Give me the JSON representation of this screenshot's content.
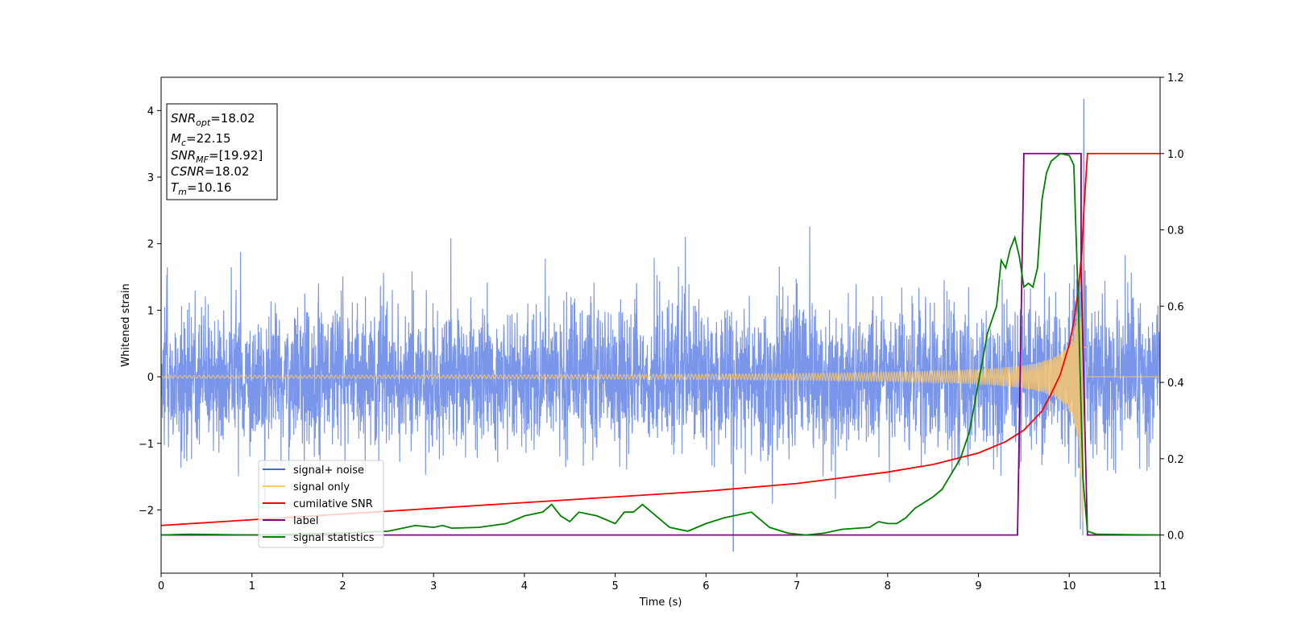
{
  "chart_data": {
    "type": "line",
    "title": "",
    "xlabel": "Time (s)",
    "ylabel": "Whitened strain",
    "xlim": [
      0,
      11
    ],
    "ylim": [
      -2.95,
      4.5
    ],
    "y2lim": [
      -0.1,
      1.2
    ],
    "xticks": [
      "0",
      "1",
      "2",
      "3",
      "4",
      "5",
      "6",
      "7",
      "8",
      "9",
      "10",
      "11"
    ],
    "yticks": [
      -2,
      -1,
      0,
      1,
      2,
      3,
      4
    ],
    "yticks_labels": [
      "−2",
      "−1",
      "0",
      "1",
      "2",
      "3",
      "4"
    ],
    "y2ticks": [
      0.0,
      0.2,
      0.4,
      0.6,
      0.8,
      1.0,
      1.2
    ],
    "y2ticks_labels": [
      "0.0",
      "0.2",
      "0.4",
      "0.6",
      "0.8",
      "1.0",
      "1.2"
    ],
    "grid": false,
    "legend_position": "lower-left",
    "info_box": {
      "position": "upper-left",
      "lines": [
        {
          "base": "SNR",
          "sub": "opt",
          "rest": "=18.02"
        },
        {
          "base": "M",
          "sub": "c",
          "rest": "=22.15"
        },
        {
          "base": "SNR",
          "sub": "MF",
          "rest": "=[19.92]"
        },
        {
          "base": "CSNR",
          "sub": "",
          "rest": "=18.02"
        },
        {
          "base": "T",
          "sub": "m",
          "rest": "=10.16"
        }
      ]
    },
    "series": [
      {
        "name": "signal+ noise",
        "axis": "left",
        "color": "#4169e1",
        "description_values": {
          "noise_std": 0.55,
          "peak_max": 4.17,
          "peak_min": -2.62
        }
      },
      {
        "name": "signal only",
        "axis": "left",
        "color": "#ffc966",
        "chirp": {
          "start_amplitude": 0.02,
          "max_amplitude": 2.35,
          "merger_time": 10.16,
          "end_time": 10.2
        }
      },
      {
        "name": "cumilative SNR",
        "axis": "right",
        "color": "#ff0000",
        "x": [
          0,
          1,
          2,
          3,
          4,
          5,
          6,
          7,
          8,
          8.5,
          9,
          9.3,
          9.5,
          9.7,
          9.8,
          9.9,
          10.0,
          10.05,
          10.1,
          10.14,
          10.16,
          10.2,
          11
        ],
        "y": [
          0.025,
          0.04,
          0.055,
          0.07,
          0.085,
          0.1,
          0.115,
          0.135,
          0.165,
          0.185,
          0.215,
          0.245,
          0.275,
          0.325,
          0.37,
          0.42,
          0.5,
          0.56,
          0.64,
          0.75,
          0.85,
          1.0,
          1.0
        ]
      },
      {
        "name": "label",
        "axis": "right",
        "color": "#800080",
        "x": [
          0,
          9.43,
          9.5,
          10.13,
          10.13,
          10.2,
          11
        ],
        "y": [
          0.0,
          0.0,
          1.0,
          1.0,
          0.7,
          0.0,
          0.0
        ]
      },
      {
        "name": "signal statistics",
        "axis": "right",
        "color": "#008000",
        "x": [
          0,
          0.3,
          1,
          2,
          2.5,
          2.8,
          3.0,
          3.1,
          3.2,
          3.5,
          3.8,
          4.0,
          4.2,
          4.3,
          4.4,
          4.5,
          4.6,
          4.7,
          4.8,
          5.0,
          5.1,
          5.2,
          5.3,
          5.4,
          5.5,
          5.6,
          5.8,
          6.0,
          6.2,
          6.4,
          6.5,
          6.6,
          6.7,
          6.9,
          7.1,
          7.3,
          7.5,
          7.8,
          7.9,
          8.0,
          8.1,
          8.2,
          8.3,
          8.4,
          8.5,
          8.6,
          8.7,
          8.8,
          8.9,
          9.0,
          9.1,
          9.2,
          9.25,
          9.3,
          9.35,
          9.4,
          9.45,
          9.5,
          9.55,
          9.6,
          9.65,
          9.7,
          9.75,
          9.8,
          9.85,
          9.9,
          10.0,
          10.05,
          10.1,
          10.15,
          10.2,
          10.3,
          11
        ],
        "y": [
          0.0,
          0.002,
          0.0,
          0.005,
          0.01,
          0.025,
          0.02,
          0.025,
          0.018,
          0.02,
          0.03,
          0.05,
          0.06,
          0.08,
          0.05,
          0.035,
          0.06,
          0.055,
          0.05,
          0.03,
          0.06,
          0.06,
          0.08,
          0.06,
          0.04,
          0.02,
          0.01,
          0.03,
          0.045,
          0.055,
          0.06,
          0.04,
          0.02,
          0.005,
          0.0,
          0.005,
          0.015,
          0.02,
          0.035,
          0.03,
          0.03,
          0.045,
          0.07,
          0.085,
          0.1,
          0.12,
          0.16,
          0.2,
          0.27,
          0.4,
          0.53,
          0.6,
          0.72,
          0.7,
          0.75,
          0.78,
          0.73,
          0.65,
          0.66,
          0.65,
          0.7,
          0.88,
          0.95,
          0.98,
          0.99,
          1.0,
          0.995,
          0.97,
          0.6,
          0.15,
          0.01,
          0.002,
          0.0
        ]
      }
    ]
  }
}
